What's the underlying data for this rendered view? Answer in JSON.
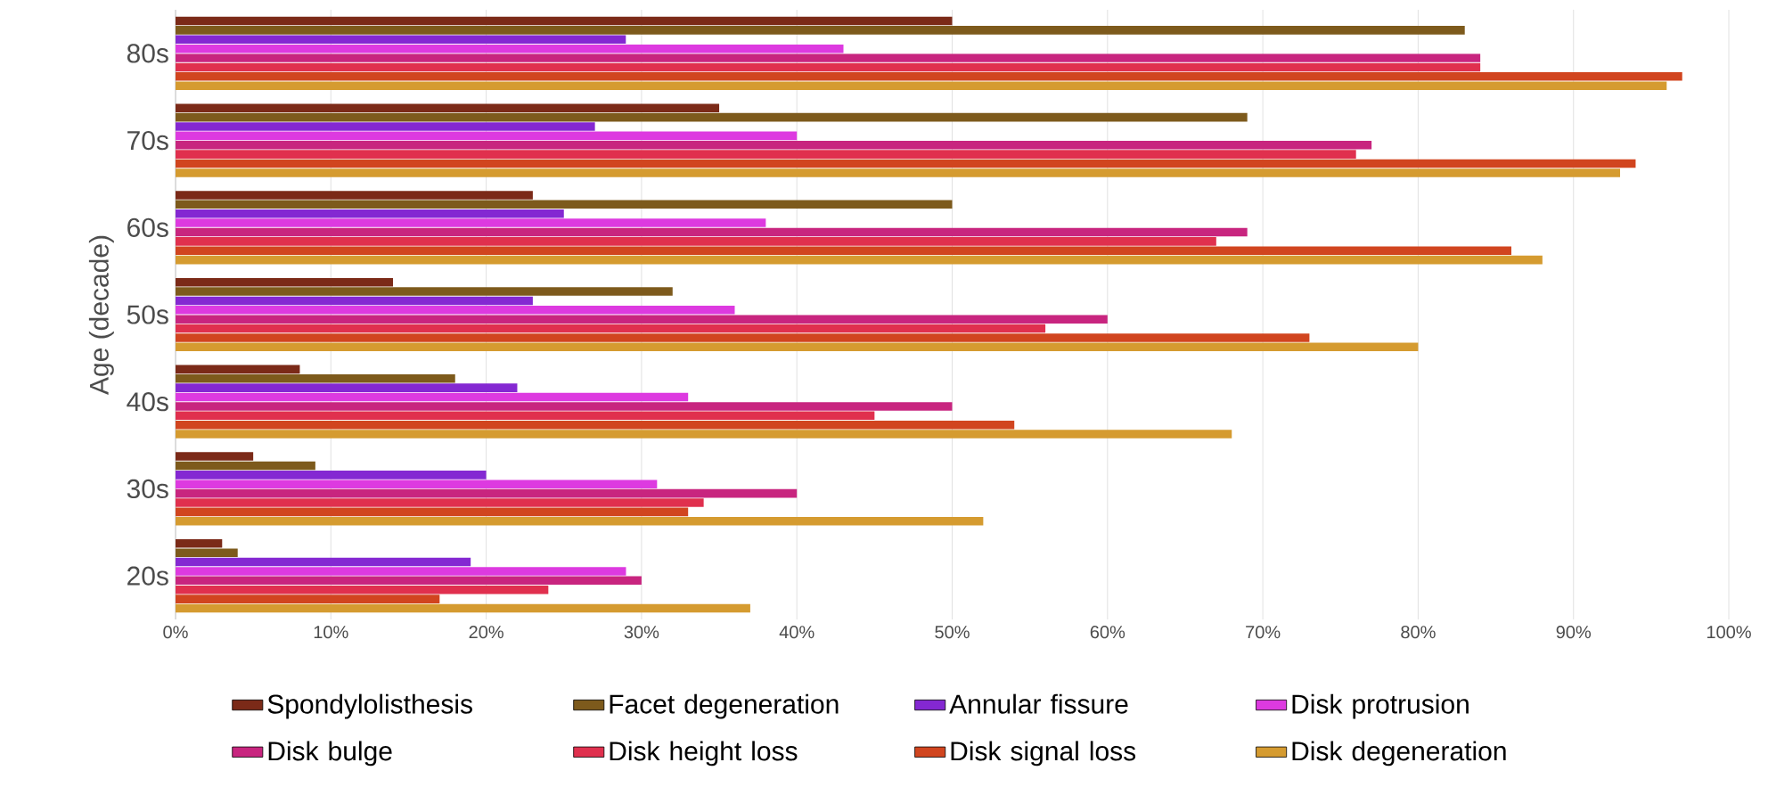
{
  "chart_data": {
    "type": "bar",
    "orientation": "horizontal",
    "ylabel": "Age (decade)",
    "categories": [
      "80s",
      "70s",
      "60s",
      "50s",
      "40s",
      "30s",
      "20s"
    ],
    "series": [
      {
        "name": "Spondylolisthesis",
        "color": "#7b2a18",
        "values": [
          50,
          35,
          23,
          14,
          8,
          5,
          3
        ]
      },
      {
        "name": "Facet degeneration",
        "color": "#7d5a1c",
        "values": [
          83,
          69,
          50,
          32,
          18,
          9,
          4
        ]
      },
      {
        "name": "Annular fissure",
        "color": "#8428d2",
        "values": [
          29,
          27,
          25,
          23,
          22,
          20,
          19
        ]
      },
      {
        "name": "Disk protrusion",
        "color": "#dd3ae0",
        "values": [
          43,
          40,
          38,
          36,
          33,
          31,
          29
        ]
      },
      {
        "name": "Disk bulge",
        "color": "#c8257f",
        "values": [
          84,
          77,
          69,
          60,
          50,
          40,
          30
        ]
      },
      {
        "name": "Disk height loss",
        "color": "#e0304e",
        "values": [
          84,
          76,
          67,
          56,
          45,
          34,
          24
        ]
      },
      {
        "name": "Disk signal loss",
        "color": "#d1451f",
        "values": [
          97,
          94,
          86,
          73,
          54,
          33,
          17
        ]
      },
      {
        "name": "Disk degeneration",
        "color": "#d59b30",
        "values": [
          96,
          93,
          88,
          80,
          68,
          52,
          37
        ]
      }
    ],
    "xlim": [
      0,
      100
    ],
    "xticks": [
      {
        "value": 0,
        "label": "0%"
      },
      {
        "value": 10,
        "label": "10%"
      },
      {
        "value": 20,
        "label": "20%"
      },
      {
        "value": 30,
        "label": "30%"
      },
      {
        "value": 40,
        "label": "40%"
      },
      {
        "value": 50,
        "label": "50%"
      },
      {
        "value": 60,
        "label": "60%"
      },
      {
        "value": 70,
        "label": "70%"
      },
      {
        "value": 80,
        "label": "80%"
      },
      {
        "value": 90,
        "label": "90%"
      },
      {
        "value": 100,
        "label": "100%"
      }
    ],
    "grid": "x",
    "legend": "bottom"
  }
}
